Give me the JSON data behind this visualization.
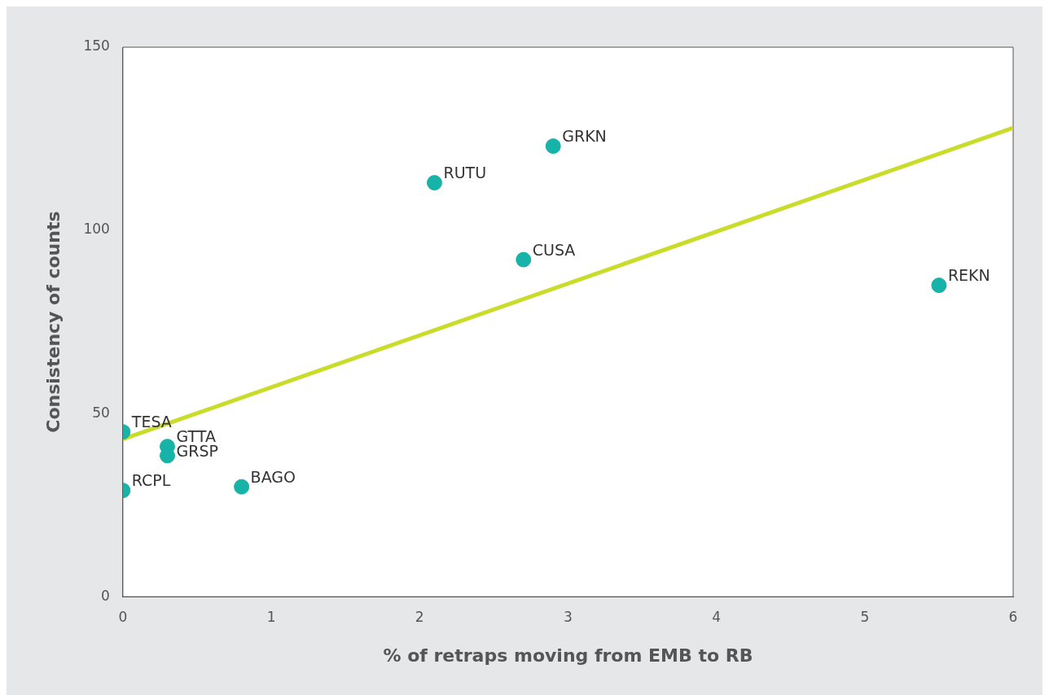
{
  "chart_data": {
    "type": "scatter",
    "xlabel": "% of retraps moving from EMB to RB",
    "ylabel": "Consistency of counts",
    "xlim": [
      0,
      6
    ],
    "xticks": [
      0,
      1,
      2,
      3,
      4,
      5,
      6
    ],
    "ylim": [
      0,
      150
    ],
    "yticks": [
      0,
      50,
      100,
      150
    ],
    "grid": false,
    "legend": false,
    "series": [
      {
        "marker": "circle",
        "color": "#17b3a8",
        "x": [
          2.9,
          2.1,
          2.7,
          5.5,
          0,
          0.3,
          0.3,
          0,
          0.8
        ],
        "values": [
          123,
          113,
          92,
          85,
          45,
          41,
          38.5,
          29,
          30
        ]
      },
      {
        "type": "line",
        "color": "#c9dc2a",
        "x": [
          0,
          6
        ],
        "values": [
          43,
          128
        ]
      }
    ],
    "annotations": [
      {
        "text": "GRKN",
        "x": 2.9,
        "y": 123
      },
      {
        "text": "RUTU",
        "x": 2.1,
        "y": 113
      },
      {
        "text": "CUSA",
        "x": 2.7,
        "y": 92
      },
      {
        "text": "REKN",
        "x": 5.5,
        "y": 85
      },
      {
        "text": "TESA",
        "x": 0,
        "y": 45
      },
      {
        "text": "GTTA",
        "x": 0.3,
        "y": 41
      },
      {
        "text": "GRSP",
        "x": 0.3,
        "y": 38.5
      },
      {
        "text": "RCPL",
        "x": 0,
        "y": 29
      },
      {
        "text": "BAGO",
        "x": 0.8,
        "y": 30
      }
    ]
  }
}
